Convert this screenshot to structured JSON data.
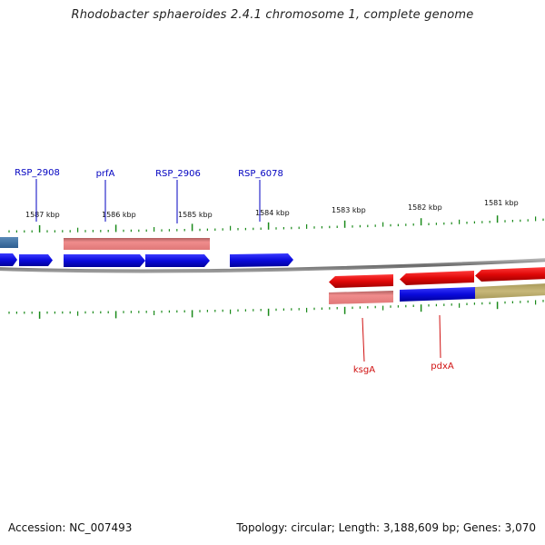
{
  "title": "Rhodobacter sphaeroides 2.4.1 chromosome 1, complete genome",
  "footer": {
    "accession": "Accession: NC_007493",
    "summary": "Topology: circular; Length: 3,188,609 bp; Genes: 3,070"
  },
  "colors": {
    "forward_cds": "#1010e0",
    "reverse_cds": "#e01010",
    "forward_rna": "#e07a7a",
    "ticks": "#1a8a1a",
    "forward_label": "#0000c0",
    "reverse_label": "#d01010",
    "backbone": "#888888"
  },
  "kbp_labels": [
    {
      "text": "1587 kbp"
    },
    {
      "text": "1586 kbp"
    },
    {
      "text": "1585 kbp"
    },
    {
      "text": "1584 kbp"
    },
    {
      "text": "1583 kbp"
    },
    {
      "text": "1582 kbp"
    },
    {
      "text": "1581 kbp"
    }
  ],
  "gene_labels_top": [
    "RSP_2908",
    "prfA",
    "RSP_2906",
    "RSP_6078"
  ],
  "gene_labels_bottom": [
    "ksgA",
    "pdxA"
  ]
}
